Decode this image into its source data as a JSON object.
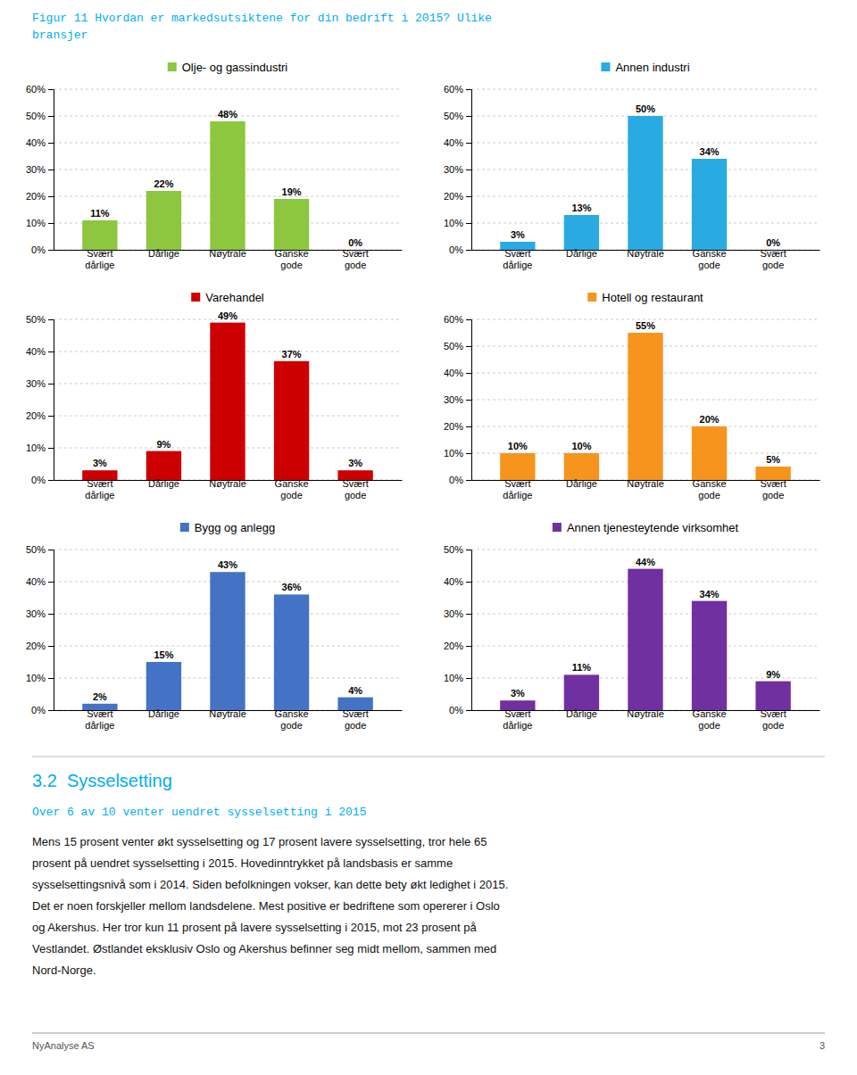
{
  "title": "Figur 11 Hvordan er markedsutsiktene for din bedrift i 2015? Ulike\nbransjer",
  "chart_data": [
    {
      "type": "bar",
      "title": "Olje- og gassindustri",
      "categories": [
        "Svært\ndårlige",
        "Dårlige",
        "Nøytrale",
        "Ganske\ngode",
        "Svært\ngode"
      ],
      "values": [
        11,
        22,
        48,
        19,
        0
      ],
      "value_labels": [
        "11%",
        "22%",
        "48%",
        "19%",
        "0%"
      ],
      "color": "#8DC63F",
      "ylim": [
        0,
        60
      ],
      "yticks": [
        {
          "value": 0,
          "label": "0%"
        },
        {
          "value": 10,
          "label": "10%"
        },
        {
          "value": 20,
          "label": "20%"
        },
        {
          "value": 30,
          "label": "30%"
        },
        {
          "value": 40,
          "label": "40%"
        },
        {
          "value": 50,
          "label": "50%"
        },
        {
          "value": 60,
          "label": "60%"
        }
      ],
      "grid": true,
      "data_labels": true
    },
    {
      "type": "bar",
      "title": "Annen industri",
      "categories": [
        "Svært\ndårlige",
        "Dårlige",
        "Nøytrale",
        "Ganske\ngode",
        "Svært\ngode"
      ],
      "values": [
        3,
        13,
        50,
        34,
        0
      ],
      "value_labels": [
        "3%",
        "13%",
        "50%",
        "34%",
        "0%"
      ],
      "color": "#29ABE2",
      "ylim": [
        0,
        60
      ],
      "yticks": [
        {
          "value": 0,
          "label": "0%"
        },
        {
          "value": 10,
          "label": "10%"
        },
        {
          "value": 20,
          "label": "20%"
        },
        {
          "value": 30,
          "label": "30%"
        },
        {
          "value": 40,
          "label": "40%"
        },
        {
          "value": 50,
          "label": "50%"
        },
        {
          "value": 60,
          "label": "60%"
        }
      ],
      "grid": true,
      "data_labels": true
    },
    {
      "type": "bar",
      "title": "Varehandel",
      "categories": [
        "Svært\ndårlige",
        "Dårlige",
        "Nøytrale",
        "Ganske\ngode",
        "Svært\ngode"
      ],
      "values": [
        3,
        9,
        49,
        37,
        3
      ],
      "value_labels": [
        "3%",
        "9%",
        "49%",
        "37%",
        "3%"
      ],
      "color": "#CC0000",
      "ylim": [
        0,
        50
      ],
      "yticks": [
        {
          "value": 0,
          "label": "0%"
        },
        {
          "value": 10,
          "label": "10%"
        },
        {
          "value": 20,
          "label": "20%"
        },
        {
          "value": 30,
          "label": "30%"
        },
        {
          "value": 40,
          "label": "40%"
        },
        {
          "value": 50,
          "label": "50%"
        }
      ],
      "grid": true,
      "data_labels": true
    },
    {
      "type": "bar",
      "title": "Hotell og restaurant",
      "categories": [
        "Svært\ndårlige",
        "Dårlige",
        "Nøytrale",
        "Ganske\ngode",
        "Svært\ngode"
      ],
      "values": [
        10,
        10,
        55,
        20,
        5
      ],
      "value_labels": [
        "10%",
        "10%",
        "55%",
        "20%",
        "5%"
      ],
      "color": "#F7941D",
      "ylim": [
        0,
        60
      ],
      "yticks": [
        {
          "value": 0,
          "label": "0%"
        },
        {
          "value": 10,
          "label": "10%"
        },
        {
          "value": 20,
          "label": "20%"
        },
        {
          "value": 30,
          "label": "30%"
        },
        {
          "value": 40,
          "label": "40%"
        },
        {
          "value": 50,
          "label": "50%"
        },
        {
          "value": 60,
          "label": "60%"
        }
      ],
      "grid": true,
      "data_labels": true
    },
    {
      "type": "bar",
      "title": "Bygg og anlegg",
      "categories": [
        "Svært\ndårlige",
        "Dårlige",
        "Nøytrale",
        "Ganske\ngode",
        "Svært\ngode"
      ],
      "values": [
        2,
        15,
        43,
        36,
        4
      ],
      "value_labels": [
        "2%",
        "15%",
        "43%",
        "36%",
        "4%"
      ],
      "color": "#4472C4",
      "ylim": [
        0,
        50
      ],
      "yticks": [
        {
          "value": 0,
          "label": "0%"
        },
        {
          "value": 10,
          "label": "10%"
        },
        {
          "value": 20,
          "label": "20%"
        },
        {
          "value": 30,
          "label": "30%"
        },
        {
          "value": 40,
          "label": "40%"
        },
        {
          "value": 50,
          "label": "50%"
        }
      ],
      "grid": true,
      "data_labels": true
    },
    {
      "type": "bar",
      "title": "Annen tjenesteytende virksomhet",
      "categories": [
        "Svært\ndårlige",
        "Dårlige",
        "Nøytrale",
        "Ganske\ngode",
        "Svært\ngode"
      ],
      "values": [
        3,
        11,
        44,
        34,
        9
      ],
      "value_labels": [
        "3%",
        "11%",
        "44%",
        "34%",
        "9%"
      ],
      "color": "#7030A0",
      "ylim": [
        0,
        50
      ],
      "yticks": [
        {
          "value": 0,
          "label": "0%"
        },
        {
          "value": 10,
          "label": "10%"
        },
        {
          "value": 20,
          "label": "20%"
        },
        {
          "value": 30,
          "label": "30%"
        },
        {
          "value": 40,
          "label": "40%"
        },
        {
          "value": 50,
          "label": "50%"
        }
      ],
      "grid": true,
      "data_labels": true
    }
  ],
  "section_title": "3.2  Sysselsetting",
  "subtitle": "Over 6 av 10 venter uendret sysselsetting i 2015",
  "body_text": "Mens 15 prosent venter økt sysselsetting og 17 prosent lavere sysselsetting, tror hele 65\nprosent på uendret sysselsetting i 2015. Hovedinntrykket på landsbasis er samme\nsysselsettingsnivå som i 2014. Siden befolkningen vokser, kan dette bety økt ledighet i 2015.\nDet er noen forskjeller mellom landsdelene. Mest positive er bedriftene som opererer i Oslo\nog Akershus. Her tror kun 11 prosent på lavere sysselsetting i 2015, mot 23 prosent på\nVestlandet. Østlandet eksklusiv Oslo og Akershus befinner seg midt mellom, sammen med\nNord-Norge.",
  "footer_left": "NyAnalyse AS",
  "footer_right": "3"
}
